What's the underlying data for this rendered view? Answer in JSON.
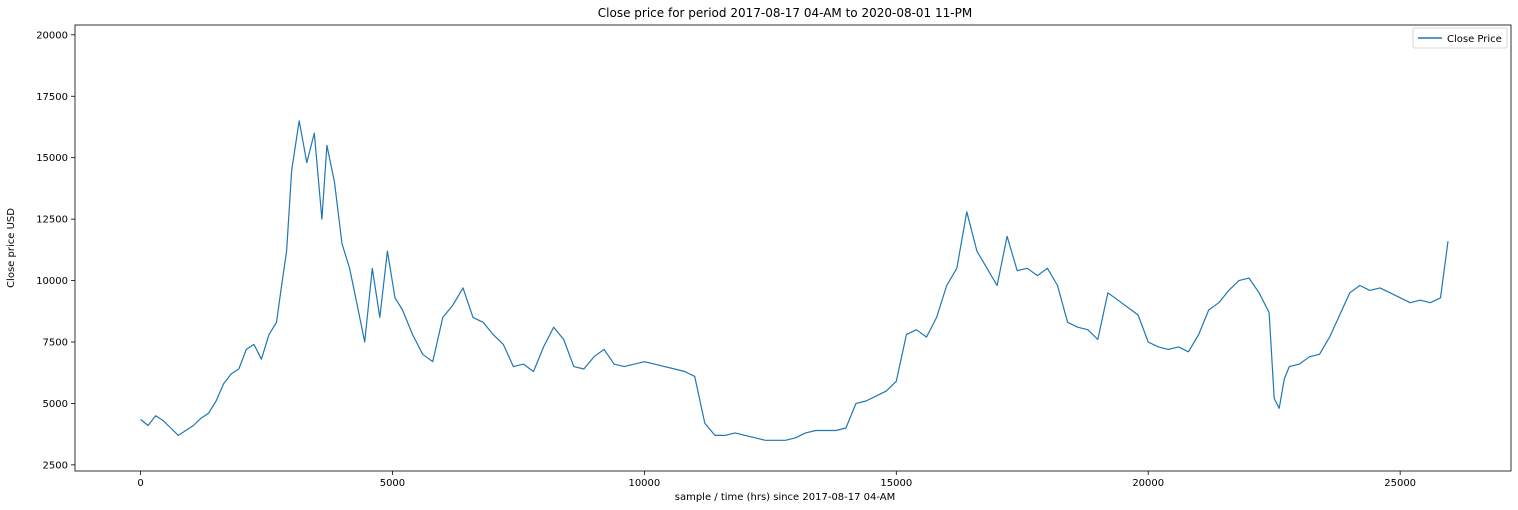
{
  "chart_data": {
    "type": "line",
    "title": "Close price for period 2017-08-17 04-AM to 2020-08-01 11-PM",
    "xlabel": "sample / time (hrs) since 2017-08-17 04-AM",
    "ylabel": "Close price USD",
    "xlim": [
      -1300,
      27200
    ],
    "ylim": [
      2250,
      20400
    ],
    "xticks": [
      0,
      5000,
      10000,
      15000,
      20000,
      25000
    ],
    "yticks": [
      2500,
      5000,
      7500,
      10000,
      12500,
      15000,
      17500,
      20000
    ],
    "grid": false,
    "legend_position": "top-right",
    "colors": {
      "line": "#1f77b4"
    },
    "series": [
      {
        "name": "Close Price",
        "x": [
          0,
          150,
          300,
          450,
          600,
          750,
          900,
          1050,
          1200,
          1350,
          1500,
          1650,
          1800,
          1950,
          2100,
          2250,
          2400,
          2550,
          2700,
          2800,
          2900,
          3000,
          3150,
          3300,
          3450,
          3600,
          3700,
          3850,
          4000,
          4150,
          4300,
          4450,
          4600,
          4750,
          4900,
          5050,
          5200,
          5400,
          5600,
          5800,
          6000,
          6200,
          6400,
          6600,
          6800,
          7000,
          7200,
          7400,
          7600,
          7800,
          8000,
          8200,
          8400,
          8600,
          8800,
          9000,
          9200,
          9400,
          9600,
          9800,
          10000,
          10200,
          10400,
          10600,
          10800,
          11000,
          11200,
          11400,
          11600,
          11800,
          12000,
          12200,
          12400,
          12600,
          12800,
          13000,
          13200,
          13400,
          13600,
          13800,
          14000,
          14200,
          14400,
          14600,
          14800,
          15000,
          15200,
          15400,
          15600,
          15800,
          16000,
          16200,
          16400,
          16600,
          16800,
          17000,
          17200,
          17400,
          17600,
          17800,
          18000,
          18200,
          18400,
          18600,
          18800,
          19000,
          19200,
          19400,
          19600,
          19800,
          20000,
          20200,
          20400,
          20600,
          20800,
          21000,
          21200,
          21400,
          21600,
          21800,
          22000,
          22200,
          22400,
          22500,
          22600,
          22700,
          22800,
          23000,
          23200,
          23400,
          23600,
          23800,
          24000,
          24200,
          24400,
          24600,
          24800,
          25000,
          25200,
          25400,
          25600,
          25800,
          25950
        ],
        "y": [
          4350,
          4100,
          4500,
          4300,
          4000,
          3700,
          3900,
          4100,
          4400,
          4600,
          5100,
          5800,
          6200,
          6400,
          7200,
          7400,
          6800,
          7800,
          8300,
          9800,
          11200,
          14500,
          16500,
          14800,
          16000,
          12500,
          15500,
          14000,
          11500,
          10500,
          9000,
          7500,
          10500,
          8500,
          11200,
          9300,
          8800,
          7800,
          7000,
          6700,
          8500,
          9000,
          9700,
          8500,
          8300,
          7800,
          7400,
          6500,
          6600,
          6300,
          7300,
          8100,
          7600,
          6500,
          6400,
          6900,
          7200,
          6600,
          6500,
          6600,
          6700,
          6600,
          6500,
          6400,
          6300,
          6100,
          4200,
          3700,
          3700,
          3800,
          3700,
          3600,
          3500,
          3500,
          3500,
          3600,
          3800,
          3900,
          3900,
          3900,
          4000,
          5000,
          5100,
          5300,
          5500,
          5900,
          7800,
          8000,
          7700,
          8500,
          9800,
          10500,
          12800,
          11200,
          10500,
          9800,
          11800,
          10400,
          10500,
          10200,
          10500,
          9800,
          8300,
          8100,
          8000,
          7600,
          9500,
          9200,
          8900,
          8600,
          7500,
          7300,
          7200,
          7300,
          7100,
          7800,
          8800,
          9100,
          9600,
          10000,
          10100,
          9500,
          8700,
          5200,
          4800,
          6000,
          6500,
          6600,
          6900,
          7000,
          7700,
          8600,
          9500,
          9800,
          9600,
          9700,
          9500,
          9300,
          9100,
          9200,
          9100,
          9300,
          11600
        ]
      }
    ]
  }
}
